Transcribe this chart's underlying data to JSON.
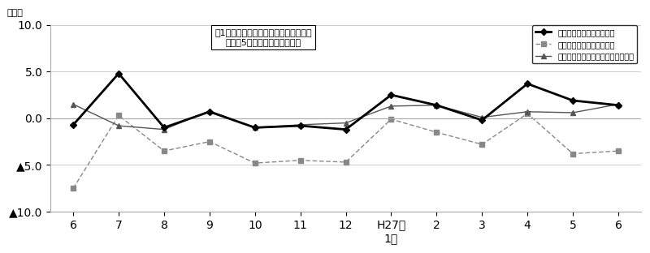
{
  "x_labels": [
    "6",
    "7",
    "8",
    "9",
    "10",
    "11",
    "12",
    "H27年\n1月",
    "2",
    "3",
    "4",
    "5",
    "6"
  ],
  "x_positions": [
    0,
    1,
    2,
    3,
    4,
    5,
    6,
    7,
    8,
    9,
    10,
    11,
    12
  ],
  "nominal_total": [
    -0.7,
    4.8,
    -1.0,
    0.7,
    -1.0,
    -0.8,
    -1.2,
    2.5,
    1.4,
    -0.2,
    3.7,
    1.9,
    1.4
  ],
  "real_total": [
    -7.5,
    0.3,
    -3.5,
    -2.5,
    -4.8,
    -4.5,
    -4.7,
    -0.1,
    -1.5,
    -2.8,
    0.5,
    -3.8,
    -3.5
  ],
  "nominal_fixed": [
    1.5,
    -0.8,
    -1.2,
    0.8,
    -1.0,
    -0.7,
    -0.5,
    1.3,
    1.4,
    0.1,
    0.7,
    0.6,
    1.5
  ],
  "ylim": [
    -10.0,
    10.0
  ],
  "yticks": [
    -10.0,
    -5.0,
    0.0,
    5.0,
    10.0
  ],
  "title_line1": "囱1　賃金指数の推移（対前年同月比）",
  "title_line2": "－規横5人以上－　調査産業計",
  "legend_nominal_total": "名目賃金（現金給与総額）",
  "legend_real_total": "実質賃金（現金給与総額）",
  "legend_nominal_fixed": "名目賃金（きまって支給する給与）",
  "ylabel": "（％）",
  "color_nominal_total": "#000000",
  "color_real_total": "#888888",
  "color_nominal_fixed": "#555555",
  "background_color": "#ffffff"
}
